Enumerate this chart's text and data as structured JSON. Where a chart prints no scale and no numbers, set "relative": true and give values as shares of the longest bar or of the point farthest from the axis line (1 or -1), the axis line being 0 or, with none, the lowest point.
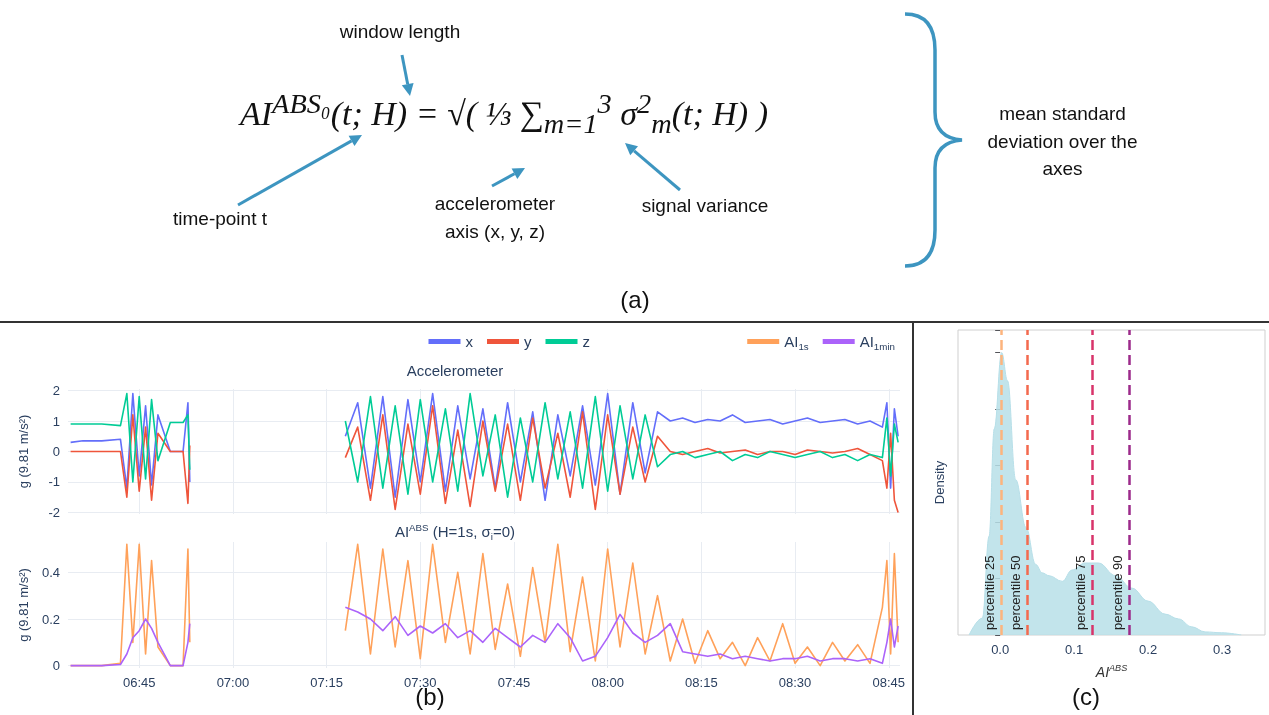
{
  "chart_data": [
    {
      "type": "other",
      "title": "AI$^{ABS₀}$(t; H) = √( ⅓ ∑$_{m=1}$$^{3}$ σ$^{2}$$_{m}$(t; H) )",
      "annotations": [
        "window length",
        "time-point t",
        "accelerometer axis (x, y, z)",
        "signal variance",
        "mean standard deviation over the axes",
        "(a)"
      ]
    },
    {
      "type": "line",
      "title": "Accelerometer",
      "ylabel": "g (9.81 m/s²)",
      "x": [
        6.567,
        6.6,
        6.65,
        6.7,
        6.717,
        6.733,
        6.75,
        6.767,
        6.783,
        6.8,
        6.833,
        6.867,
        6.88,
        6.885,
        7.083,
        7.3,
        7.333,
        7.367,
        7.4,
        7.433,
        7.467,
        7.5,
        7.533,
        7.567,
        7.6,
        7.633,
        7.667,
        7.7,
        7.733,
        7.767,
        7.8,
        7.833,
        7.867,
        7.9,
        7.933,
        7.967,
        8.0,
        8.033,
        8.067,
        8.1,
        8.133,
        8.167,
        8.2,
        8.233,
        8.267,
        8.3,
        8.333,
        8.367,
        8.4,
        8.433,
        8.467,
        8.5,
        8.533,
        8.567,
        8.6,
        8.633,
        8.667,
        8.7,
        8.733,
        8.745,
        8.755,
        8.765,
        8.775
      ],
      "xlim": [
        6.56,
        8.78
      ],
      "xticks": [
        {
          "value": 6.75,
          "label": null
        },
        {
          "value": 7,
          "label": null
        },
        {
          "value": 7.25,
          "label": null
        },
        {
          "value": 7.5,
          "label": null
        },
        {
          "value": 7.75,
          "label": null
        },
        {
          "value": 8,
          "label": null
        },
        {
          "value": 8.25,
          "label": null
        },
        {
          "value": 8.5,
          "label": null
        },
        {
          "value": 8.75,
          "label": null
        }
      ],
      "ylim": [
        -2.05,
        2.05
      ],
      "yticks": [
        -2,
        -1,
        0,
        1,
        2
      ],
      "grid": true,
      "legend": "top right",
      "tick_labels": "y",
      "series": [
        {
          "name": "x",
          "color": "#636efa",
          "values": [
            0.3,
            0.35,
            0.35,
            0.4,
            -1.2,
            1.9,
            -0.8,
            1.5,
            -1.1,
            1.2,
            0.0,
            0.0,
            1.6,
            -1.0,
            null,
            0.5,
            1.6,
            -1.2,
            1.8,
            -1.5,
            1.7,
            -1.0,
            1.9,
            -1.3,
            1.5,
            -0.9,
            1.4,
            -1.2,
            1.6,
            -1.0,
            1.3,
            -1.6,
            1.2,
            -0.8,
            1.5,
            -1.1,
            1.9,
            -1.4,
            1.6,
            -0.7,
            1.3,
            1.0,
            1.1,
            0.95,
            1.05,
            1.0,
            1.2,
            0.95,
            1.0,
            1.05,
            0.9,
            1.0,
            1.1,
            0.95,
            1.0,
            1.05,
            0.9,
            1.0,
            0.8,
            1.6,
            -1.2,
            1.4,
            0.5
          ]
        },
        {
          "name": "y",
          "color": "#ef553b",
          "values": [
            0,
            0,
            0,
            0,
            -1.5,
            1.2,
            -1.3,
            0.8,
            -1.6,
            0.6,
            0,
            0,
            -1.7,
            0.2,
            null,
            -0.2,
            0.8,
            -1.6,
            1.2,
            -1.9,
            0.9,
            -1.4,
            1.5,
            -1.7,
            0.7,
            -1.8,
            1.0,
            -1.3,
            0.9,
            -1.6,
            1.1,
            -1.2,
            0.6,
            -1.5,
            1.3,
            -1.9,
            1.2,
            -1.4,
            0.8,
            -1.0,
            0.5,
            0,
            -0.1,
            0,
            0.1,
            -0.05,
            0,
            0.05,
            -0.1,
            0,
            0,
            -0.1,
            0.05,
            0,
            -0.05,
            0,
            0.1,
            -0.1,
            -0.3,
            -1.2,
            0.6,
            -1.6,
            -2.0
          ]
        },
        {
          "name": "z",
          "color": "#00cc96",
          "values": [
            0.9,
            0.9,
            0.9,
            0.85,
            1.9,
            -1.0,
            1.8,
            -0.9,
            1.7,
            -0.3,
            0.95,
            0.95,
            1.2,
            -0.6,
            null,
            1.0,
            -1.0,
            1.8,
            -1.2,
            1.5,
            -1.4,
            1.7,
            -1.0,
            1.4,
            -1.3,
            1.9,
            -0.8,
            1.2,
            -1.5,
            1.1,
            -1.0,
            1.6,
            -0.9,
            1.3,
            -1.2,
            1.8,
            -1.3,
            1.5,
            -0.9,
            1.2,
            -0.5,
            -0.1,
            0,
            -0.2,
            -0.1,
            0,
            -0.3,
            -0.1,
            -0.2,
            0,
            -0.1,
            -0.2,
            -0.1,
            0,
            -0.2,
            -0.1,
            -0.3,
            -0.1,
            -0.2,
            1.1,
            -0.8,
            0.9,
            0.3
          ]
        }
      ]
    },
    {
      "type": "line",
      "title": "AI$^{ABS}$ (H=1s, σ$_{i}$=0)",
      "ylabel": "g (9.81 m/s²)",
      "annotations": [
        "(b)"
      ],
      "x": [
        6.567,
        6.6,
        6.65,
        6.7,
        6.717,
        6.733,
        6.75,
        6.767,
        6.783,
        6.8,
        6.833,
        6.867,
        6.88,
        6.885,
        7.083,
        7.3,
        7.333,
        7.367,
        7.4,
        7.433,
        7.467,
        7.5,
        7.533,
        7.567,
        7.6,
        7.633,
        7.667,
        7.7,
        7.733,
        7.767,
        7.8,
        7.833,
        7.867,
        7.9,
        7.933,
        7.967,
        8.0,
        8.033,
        8.067,
        8.1,
        8.133,
        8.167,
        8.2,
        8.233,
        8.267,
        8.3,
        8.333,
        8.367,
        8.4,
        8.433,
        8.467,
        8.5,
        8.533,
        8.567,
        8.6,
        8.633,
        8.667,
        8.7,
        8.733,
        8.745,
        8.755,
        8.765,
        8.775
      ],
      "xlim": [
        6.56,
        8.78
      ],
      "xticks": [
        {
          "value": 6.75,
          "label": "06:45"
        },
        {
          "value": 7,
          "label": "07:00"
        },
        {
          "value": 7.25,
          "label": "07:15"
        },
        {
          "value": 7.5,
          "label": "07:30"
        },
        {
          "value": 7.75,
          "label": "07:45"
        },
        {
          "value": 8,
          "label": "08:00"
        },
        {
          "value": 8.25,
          "label": "08:15"
        },
        {
          "value": 8.5,
          "label": "08:30"
        },
        {
          "value": 8.75,
          "label": "08:45"
        }
      ],
      "ylim": [
        -0.01,
        0.53
      ],
      "yticks": [
        0,
        0.2,
        0.4
      ],
      "grid": true,
      "legend": "top right",
      "series": [
        {
          "name": "AI$_{1s}$",
          "color": "#ffa15a",
          "values": [
            0,
            0,
            0,
            0.01,
            0.52,
            0.1,
            0.52,
            0.05,
            0.45,
            0.08,
            0,
            0,
            0.5,
            0.1,
            null,
            0.15,
            0.52,
            0.05,
            0.5,
            0.08,
            0.45,
            0.03,
            0.52,
            0.1,
            0.4,
            0.05,
            0.48,
            0.07,
            0.35,
            0.04,
            0.42,
            0.1,
            0.52,
            0.06,
            0.38,
            0.02,
            0.5,
            0.08,
            0.44,
            0.05,
            0.3,
            0.02,
            0.2,
            0.01,
            0.15,
            0.03,
            0.1,
            0.0,
            0.12,
            0.02,
            0.18,
            0.01,
            0.08,
            0.0,
            0.1,
            0.02,
            0.09,
            0.01,
            0.25,
            0.45,
            0.05,
            0.48,
            0.1
          ]
        },
        {
          "name": "AI$_{1min}$",
          "color": "#ab63fa",
          "values": [
            0,
            0,
            0,
            0.005,
            0.05,
            0.12,
            0.15,
            0.2,
            0.16,
            0.1,
            0,
            0,
            0.1,
            0.18,
            null,
            0.25,
            0.23,
            0.2,
            0.15,
            0.21,
            0.13,
            0.17,
            0.14,
            0.18,
            0.12,
            0.15,
            0.1,
            0.16,
            0.12,
            0.08,
            0.13,
            0.1,
            0.18,
            0.12,
            0.02,
            0.04,
            0.12,
            0.22,
            0.14,
            0.1,
            0.13,
            0.18,
            0.06,
            0.05,
            0.04,
            0.05,
            0.03,
            0.04,
            0.03,
            0.02,
            0.03,
            0.03,
            0.04,
            0.02,
            0.03,
            0.03,
            0.02,
            0.03,
            0.01,
            0.1,
            0.2,
            0.08,
            0.17
          ]
        }
      ]
    },
    {
      "type": "area",
      "xlabel": "AI$^{ABS}$",
      "ylabel": "Density",
      "relative": true,
      "annotations": [
        "(c)"
      ],
      "x": [
        -0.042,
        -0.024,
        -0.015,
        -0.008,
        0.002,
        0.01,
        0.021,
        0.035,
        0.048,
        0.057,
        0.066,
        0.084,
        0.097,
        0.115,
        0.133,
        0.156,
        0.178,
        0.2,
        0.223,
        0.241,
        0.259,
        0.277,
        0.299,
        0.326
      ],
      "xlim": [
        -0.057,
        0.358
      ],
      "xticks": [
        {
          "value": 0,
          "label": "0.0"
        },
        0.1,
        0.2,
        0.3
      ],
      "series": [
        {
          "color": "#b7dfe8",
          "values": [
            0,
            0.06,
            0.35,
            0.73,
            1.0,
            0.9,
            0.55,
            0.38,
            0.25,
            0.22,
            0.21,
            0.19,
            0.23,
            0.255,
            0.255,
            0.21,
            0.166,
            0.12,
            0.074,
            0.057,
            0.029,
            0.011,
            0.008,
            0
          ]
        }
      ],
      "ref_lines": [
        {
          "axis": "x",
          "value": 0.001,
          "label": "percentile 25",
          "color": "#fdb47d",
          "line_style": "dashed"
        },
        {
          "axis": "x",
          "value": 0.036,
          "label": "percentile 50",
          "color": "#f4694e",
          "line_style": "dashed"
        },
        {
          "axis": "x",
          "value": 0.124,
          "label": "percentile 75",
          "color": "#d8336a",
          "line_style": "dashed"
        },
        {
          "axis": "x",
          "value": 0.174,
          "label": "percentile 90",
          "color": "#9c2a8a",
          "line_style": "dashed"
        }
      ]
    }
  ]
}
